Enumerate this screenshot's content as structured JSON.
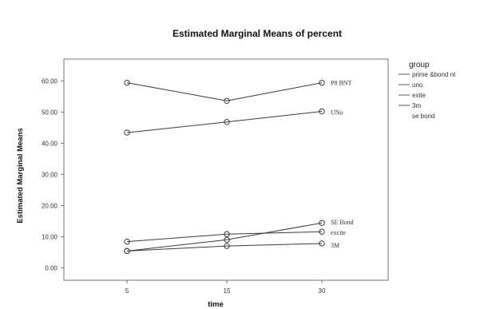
{
  "chart_data": {
    "type": "line",
    "title": "Estimated Marginal Means of percent",
    "xlabel": "time",
    "ylabel": "Estimated Marginal Means",
    "categories": [
      "5",
      "15",
      "30"
    ],
    "y_ticks": [
      "0.00",
      "10.00",
      "20.00",
      "30.00",
      "40.00",
      "50.00",
      "60.00"
    ],
    "ylim": [
      -4,
      67
    ],
    "grid": false,
    "legend_placement": "right",
    "legend_title": "group",
    "legend_entries": [
      "prime &bond nt",
      "uno",
      "exite",
      "3m",
      "se bond"
    ],
    "series": [
      {
        "name": "P8 BNT",
        "values": [
          59.4,
          53.6,
          59.4
        ],
        "end_label": "P8 BNT"
      },
      {
        "name": "UNo",
        "values": [
          43.4,
          46.8,
          50.2
        ],
        "end_label": "UNo"
      },
      {
        "name": "SE Bond",
        "values": [
          5.4,
          9.0,
          14.4
        ],
        "end_label": "SE Bond"
      },
      {
        "name": "excite",
        "values": [
          8.4,
          10.8,
          11.6
        ],
        "end_label": "excite"
      },
      {
        "name": "3M",
        "values": [
          5.4,
          7.0,
          7.8
        ],
        "end_label": "3M"
      }
    ],
    "colors": {
      "line": "#3a3a3a",
      "marker": "#3a3a3a",
      "axis": "#555555"
    }
  }
}
